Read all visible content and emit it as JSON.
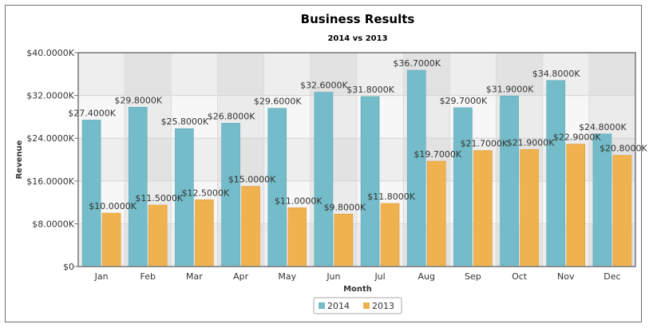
{
  "chart_data": {
    "type": "bar",
    "title": "Business Results",
    "subtitle": "2014 vs 2013",
    "xlabel": "Month",
    "ylabel": "Revenue",
    "categories": [
      "Jan",
      "Feb",
      "Mar",
      "Apr",
      "May",
      "Jun",
      "Jul",
      "Aug",
      "Sep",
      "Oct",
      "Nov",
      "Dec"
    ],
    "ylim": [
      0,
      40000
    ],
    "yticks": [
      0,
      8000,
      16000,
      24000,
      32000,
      40000
    ],
    "ytick_labels": [
      "$0",
      "$8.0000K",
      "$16.0000K",
      "$24.0000K",
      "$32.0000K",
      "$40.0000K"
    ],
    "series": [
      {
        "name": "2014",
        "color": "#74bcc9",
        "values": [
          27400,
          29800,
          25800,
          26800,
          29600,
          32600,
          31800,
          36700,
          29700,
          31900,
          34800,
          24800
        ],
        "labels": [
          "$27.4000K",
          "$29.8000K",
          "$25.8000K",
          "$26.8000K",
          "$29.6000K",
          "$32.6000K",
          "$31.8000K",
          "$36.7000K",
          "$29.7000K",
          "$31.9000K",
          "$34.8000K",
          "$24.8000K"
        ]
      },
      {
        "name": "2013",
        "color": "#efb24f",
        "values": [
          10000,
          11500,
          12500,
          15000,
          11000,
          9800,
          11800,
          19700,
          21700,
          21900,
          22900,
          20800
        ],
        "labels": [
          "$10.0000K",
          "$11.5000K",
          "$12.5000K",
          "$15.0000K",
          "$11.0000K",
          "$9.8000K",
          "$11.8000K",
          "$19.7000K",
          "$21.7000K",
          "$21.9000K",
          "$22.9000K",
          "$20.8000K"
        ]
      }
    ],
    "grid": true,
    "legend_position": "bottom-center"
  }
}
